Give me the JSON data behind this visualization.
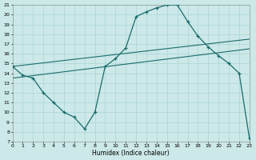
{
  "xlabel": "Humidex (Indice chaleur)",
  "xlim": [
    0,
    23
  ],
  "ylim": [
    7,
    21
  ],
  "yticks": [
    7,
    8,
    9,
    10,
    11,
    12,
    13,
    14,
    15,
    16,
    17,
    18,
    19,
    20,
    21
  ],
  "xticks": [
    0,
    1,
    2,
    3,
    4,
    5,
    6,
    7,
    8,
    9,
    10,
    11,
    12,
    13,
    14,
    15,
    16,
    17,
    18,
    19,
    20,
    21,
    22,
    23
  ],
  "background_color": "#cce8e8",
  "grid_color": "#aad4d4",
  "line_color": "#1a6b6b",
  "line1_x": [
    0,
    1,
    2,
    3,
    4,
    5,
    6,
    7,
    8,
    9,
    10,
    11,
    12,
    13,
    14,
    15,
    16,
    17,
    18,
    19,
    20,
    21,
    22,
    23
  ],
  "line1_y": [
    14.7,
    13.8,
    13.5,
    12.0,
    11.0,
    10.0,
    9.5,
    8.3,
    10.0,
    14.7,
    15.5,
    16.6,
    19.8,
    20.3,
    20.7,
    21.0,
    21.0,
    19.3,
    17.8,
    16.7,
    15.8,
    15.0,
    14.0,
    7.3
  ],
  "line2_x": [
    0,
    23
  ],
  "line2_y": [
    13.5,
    16.5
  ],
  "line3_x": [
    0,
    23
  ],
  "line3_y": [
    14.7,
    17.5
  ]
}
